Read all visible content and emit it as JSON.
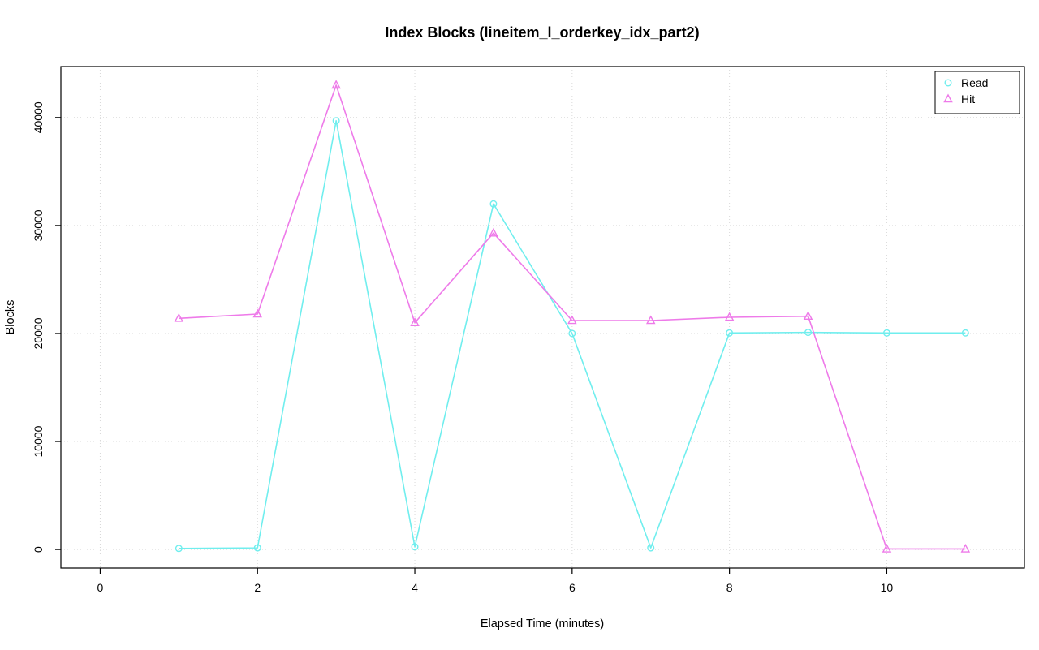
{
  "chart_data": {
    "type": "line",
    "title": "Index Blocks (lineitem_l_orderkey_idx_part2)",
    "xlabel": "Elapsed Time (minutes)",
    "ylabel": "Blocks",
    "x": [
      1,
      2,
      3,
      4,
      5,
      6,
      7,
      8,
      9,
      10,
      11
    ],
    "series": [
      {
        "name": "Read",
        "marker": "circle",
        "color": "#70EEEE",
        "values": [
          100,
          150,
          39700,
          250,
          32000,
          20000,
          150,
          20050,
          20100,
          20050,
          20050
        ]
      },
      {
        "name": "Hit",
        "marker": "triangle",
        "color": "#EE7AE9",
        "values": [
          21400,
          21800,
          43000,
          21000,
          29300,
          21200,
          21200,
          21500,
          21600,
          50,
          50
        ]
      }
    ],
    "xlim": [
      -0.5,
      11.75
    ],
    "ylim": [
      -1720,
      44720
    ],
    "xticks": [
      0,
      2,
      4,
      6,
      8,
      10
    ],
    "yticks": [
      0,
      10000,
      20000,
      30000,
      40000
    ],
    "grid": "dotted",
    "grid_color": "#d9d9d9",
    "axis_color": "#000000",
    "legend": {
      "position": "top-right",
      "entries": [
        "Read",
        "Hit"
      ]
    }
  }
}
